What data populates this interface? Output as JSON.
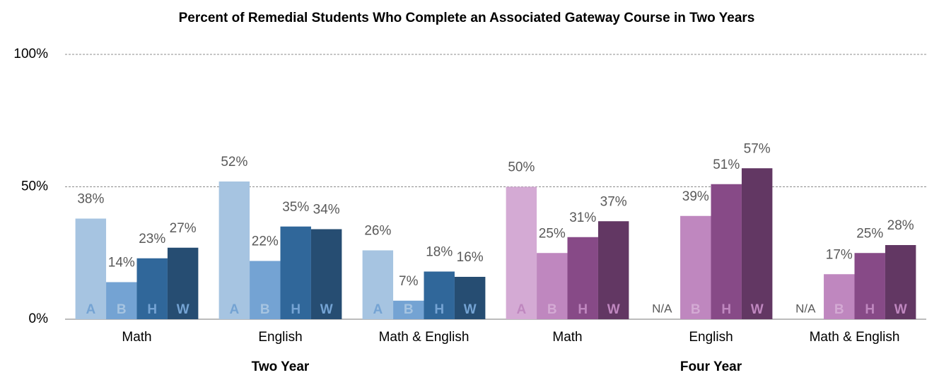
{
  "chart_data": {
    "type": "bar",
    "title": "Percent of Remedial Students Who Complete an Associated Gateway Course in Two Years",
    "groups": [
      {
        "name": "Two Year",
        "categories": [
          "Math",
          "English",
          "Math & English"
        ],
        "colors": [
          "#a6c4e1",
          "#74a3d3",
          "#30679a",
          "#264d72"
        ]
      },
      {
        "name": "Four Year",
        "categories": [
          "Math",
          "English",
          "Math & English"
        ],
        "colors": [
          "#d4aad4",
          "#bf87bf",
          "#874a87",
          "#623763"
        ]
      }
    ],
    "series": [
      {
        "name": "A",
        "values": [
          38,
          52,
          26,
          50,
          null,
          null
        ],
        "value_labels": [
          "38%",
          "52%",
          "26%",
          "50%",
          "N/A",
          "N/A"
        ]
      },
      {
        "name": "B",
        "values": [
          14,
          22,
          7,
          25,
          39,
          17
        ],
        "value_labels": [
          "14%",
          "22%",
          "7%",
          "25%",
          "39%",
          "17%"
        ]
      },
      {
        "name": "H",
        "values": [
          23,
          35,
          18,
          31,
          51,
          25
        ],
        "value_labels": [
          "23%",
          "35%",
          "18%",
          "31%",
          "51%",
          "25%"
        ]
      },
      {
        "name": "W",
        "values": [
          27,
          34,
          16,
          37,
          57,
          28
        ],
        "value_labels": [
          "27%",
          "34%",
          "16%",
          "37%",
          "57%",
          "28%"
        ]
      }
    ],
    "ylim": [
      0,
      100
    ],
    "yticks": [
      {
        "value": 0,
        "label": "0%"
      },
      {
        "value": 50,
        "label": "50%"
      },
      {
        "value": 100,
        "label": "100%"
      }
    ],
    "grid": true
  }
}
